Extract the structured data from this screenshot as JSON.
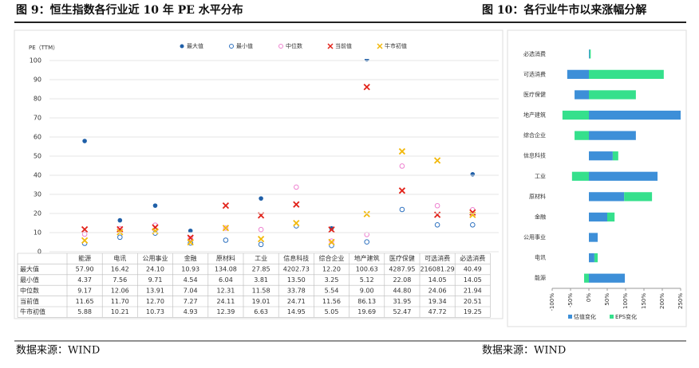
{
  "chart_data": [
    {
      "type": "dot_table",
      "title": "图 9：恒生指数各行业近 10 年 PE 水平分布",
      "y_label": "PE（TTM）",
      "source": "数据来源：WIND",
      "categories": [
        "能源",
        "电讯",
        "公用事业",
        "金融",
        "原材料",
        "工业",
        "信息科技",
        "综合企业",
        "地产建筑",
        "医疗保健",
        "可选消费",
        "必选消费"
      ],
      "series": [
        {
          "name": "最大值",
          "color": "#1f5fa8",
          "marker": "dot",
          "values": [
            57.9,
            16.42,
            24.1,
            10.93,
            134.08,
            27.85,
            4202.73,
            12.2,
            100.63,
            4287.95,
            216081.29,
            40.49
          ],
          "value_labels": [
            "57.90",
            "16.42",
            "24.10",
            "10.93",
            "134.08",
            "27.85",
            "4202.73",
            "12.20",
            "100.63",
            "4287.95",
            "216081.29",
            "40.49"
          ]
        },
        {
          "name": "最小值",
          "color": "#2f72c0",
          "marker": "circle",
          "values": [
            4.37,
            7.56,
            9.71,
            4.54,
            6.04,
            3.81,
            13.5,
            3.25,
            5.12,
            22.08,
            14.05,
            14.05
          ],
          "value_labels": [
            "4.37",
            "7.56",
            "9.71",
            "4.54",
            "6.04",
            "3.81",
            "13.50",
            "3.25",
            "5.12",
            "22.08",
            "14.05",
            "14.05"
          ]
        },
        {
          "name": "中位数",
          "color": "#ee82d0",
          "marker": "circle",
          "values": [
            9.17,
            12.06,
            13.91,
            7.04,
            12.31,
            11.58,
            33.78,
            5.54,
            9.0,
            44.8,
            24.06,
            21.94
          ],
          "value_labels": [
            "9.17",
            "12.06",
            "13.91",
            "7.04",
            "12.31",
            "11.58",
            "33.78",
            "5.54",
            "9.00",
            "44.80",
            "24.06",
            "21.94"
          ]
        },
        {
          "name": "当前值",
          "color": "#e2231a",
          "marker": "x",
          "values": [
            11.65,
            11.7,
            12.7,
            7.27,
            24.11,
            19.01,
            24.71,
            11.56,
            86.13,
            31.95,
            19.34,
            20.51
          ],
          "value_labels": [
            "11.65",
            "11.70",
            "12.70",
            "7.27",
            "24.11",
            "19.01",
            "24.71",
            "11.56",
            "86.13",
            "31.95",
            "19.34",
            "20.51"
          ]
        },
        {
          "name": "牛市初值",
          "color": "#f2b90c",
          "marker": "x",
          "values": [
            5.88,
            10.21,
            10.73,
            4.93,
            12.39,
            6.63,
            14.95,
            5.05,
            19.69,
            52.47,
            47.72,
            19.25
          ],
          "value_labels": [
            "5.88",
            "10.21",
            "10.73",
            "4.93",
            "12.39",
            "6.63",
            "14.95",
            "5.05",
            "19.69",
            "52.47",
            "47.72",
            "19.25"
          ]
        }
      ],
      "ylim": [
        0,
        100
      ],
      "yticks": [
        0,
        10,
        20,
        30,
        40,
        50,
        60,
        70,
        80,
        90,
        100
      ],
      "grid": true
    },
    {
      "type": "diverging_bar",
      "title": "图 10：各行业牛市以来涨幅分解",
      "source": "数据来源：WIND",
      "categories": [
        "必选消费",
        "可选消费",
        "医疗保健",
        "地产建筑",
        "综合企业",
        "信息科技",
        "工业",
        "原材料",
        "金融",
        "公用事业",
        "电讯",
        "能源"
      ],
      "series": [
        {
          "name": "估值变化",
          "color": "#3d8fd8",
          "values": [
            2,
            -59,
            -39,
            250,
            128,
            65,
            187,
            96,
            50,
            24,
            15,
            98
          ]
        },
        {
          "name": "EPS变化",
          "color": "#35e08c",
          "values": [
            3,
            204,
            128,
            -72,
            -39,
            15,
            -46,
            76,
            20,
            0,
            9,
            -13
          ]
        }
      ],
      "xlim": [
        -100,
        250
      ],
      "xticks": [
        {
          "value": -100,
          "label": "-100%"
        },
        {
          "value": -50,
          "label": "-50%"
        },
        {
          "value": 0,
          "label": "0%"
        },
        {
          "value": 50,
          "label": "50%"
        },
        {
          "value": 100,
          "label": "100%"
        },
        {
          "value": 150,
          "label": "150%"
        },
        {
          "value": 200,
          "label": "200%"
        },
        {
          "value": 250,
          "label": "250%"
        }
      ]
    }
  ]
}
